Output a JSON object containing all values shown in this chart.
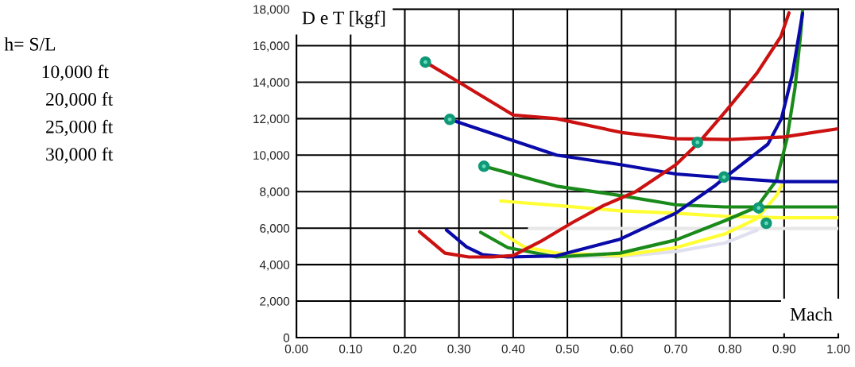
{
  "chart_data": {
    "type": "line",
    "xlabel": "Mach",
    "ylabel": "D e T [kgf]",
    "annotations": [
      "h= S/L",
      "10,000 ft",
      "20,000 ft",
      "25,000 ft",
      "30,000 ft"
    ],
    "xlim": [
      0,
      1
    ],
    "ylim": [
      0,
      18000
    ],
    "xticks": [
      {
        "value": 0,
        "label": "0.00"
      },
      {
        "value": 0.1,
        "label": "0.10"
      },
      {
        "value": 0.2,
        "label": "0.20"
      },
      {
        "value": 0.3,
        "label": "0.30"
      },
      {
        "value": 0.4,
        "label": "0.40"
      },
      {
        "value": 0.5,
        "label": "0.50"
      },
      {
        "value": 0.6,
        "label": "0.60"
      },
      {
        "value": 0.7,
        "label": "0.70"
      },
      {
        "value": 0.8,
        "label": "0.80"
      },
      {
        "value": 0.9,
        "label": "0.90"
      },
      {
        "value": 1,
        "label": "1.00"
      }
    ],
    "yticks": [
      0,
      {
        "value": 2000,
        "label": "2,000"
      },
      {
        "value": 4000,
        "label": "4,000"
      },
      {
        "value": 6000,
        "label": "6,000"
      },
      {
        "value": 8000,
        "label": "8,000"
      },
      {
        "value": 10000,
        "label": "10,000"
      },
      {
        "value": 12000,
        "label": "12,000"
      },
      {
        "value": 14000,
        "label": "14,000"
      },
      {
        "value": 16000,
        "label": "16,000"
      },
      {
        "value": 18000,
        "label": "18,000"
      }
    ],
    "grid": true,
    "series": [
      {
        "color": "#e8e8e8",
        "x": [
          0.43,
          0.6,
          0.8,
          1.0
        ],
        "values": [
          5980,
          5980,
          5980,
          5980
        ]
      },
      {
        "color": "#e0e0f0",
        "x": [
          0.5,
          0.6,
          0.7,
          0.79,
          0.85
        ],
        "values": [
          4420,
          4450,
          4720,
          5180,
          5890
        ]
      },
      {
        "color": "#ffff33",
        "x": [
          0.377,
          0.48,
          0.597,
          0.7,
          0.79,
          0.895,
          1.0
        ],
        "values": [
          7490,
          7240,
          6950,
          6820,
          6650,
          6570,
          6570
        ]
      },
      {
        "color": "#ffff33",
        "x": [
          0.377,
          0.42,
          0.48,
          0.597,
          0.7,
          0.79,
          0.85,
          0.886,
          0.895
        ],
        "values": [
          5770,
          4970,
          4630,
          4500,
          4930,
          5680,
          6530,
          7790,
          8340
        ]
      },
      {
        "color": "#1a8a1a",
        "x": [
          0.346,
          0.48,
          0.597,
          0.7,
          0.79,
          0.895,
          1.0
        ],
        "values": [
          9390,
          8300,
          7790,
          7280,
          7160,
          7160,
          7160
        ]
      },
      {
        "color": "#1a8a1a",
        "x": [
          0.34,
          0.39,
          0.48,
          0.597,
          0.7,
          0.79,
          0.85,
          0.886,
          0.905,
          0.92,
          0.93,
          0.934
        ],
        "values": [
          5770,
          4930,
          4420,
          4630,
          5350,
          6400,
          7160,
          8630,
          10860,
          13680,
          16500,
          17900
        ]
      },
      {
        "color": "#0a0aa8",
        "x": [
          0.283,
          0.4,
          0.48,
          0.6,
          0.7,
          0.79,
          0.895,
          1.0
        ],
        "values": [
          11960,
          10800,
          10000,
          9470,
          8970,
          8760,
          8550,
          8550
        ]
      },
      {
        "color": "#0a0aa8",
        "x": [
          0.277,
          0.314,
          0.343,
          0.39,
          0.48,
          0.597,
          0.7,
          0.773,
          0.79,
          0.87,
          0.895,
          0.915,
          0.934
        ],
        "values": [
          5890,
          4970,
          4550,
          4420,
          4480,
          5390,
          6820,
          8340,
          8760,
          10600,
          12000,
          14400,
          17770
        ]
      },
      {
        "color": "#cc1111",
        "x": [
          0.238,
          0.3,
          0.4,
          0.48,
          0.6,
          0.7,
          0.8,
          0.9,
          1.0
        ],
        "values": [
          15100,
          14000,
          12200,
          12000,
          11240,
          10900,
          10860,
          11000,
          11450
        ]
      },
      {
        "color": "#cc1111",
        "x": [
          0.227,
          0.274,
          0.318,
          0.362,
          0.4,
          0.45,
          0.509,
          0.567,
          0.626,
          0.7,
          0.743,
          0.792,
          0.85,
          0.894,
          0.909
        ],
        "values": [
          5810,
          4630,
          4420,
          4420,
          4500,
          5260,
          6300,
          7240,
          8000,
          9470,
          10700,
          12400,
          14500,
          16500,
          17800
        ]
      },
      {
        "type": "scatter",
        "color": "#119977",
        "marker": "circle",
        "x": [
          0.238,
          0.283,
          0.346,
          0.74,
          0.789,
          0.853,
          0.867
        ],
        "values": [
          15100,
          11960,
          9390,
          10700,
          8800,
          7110,
          6270
        ]
      }
    ]
  }
}
